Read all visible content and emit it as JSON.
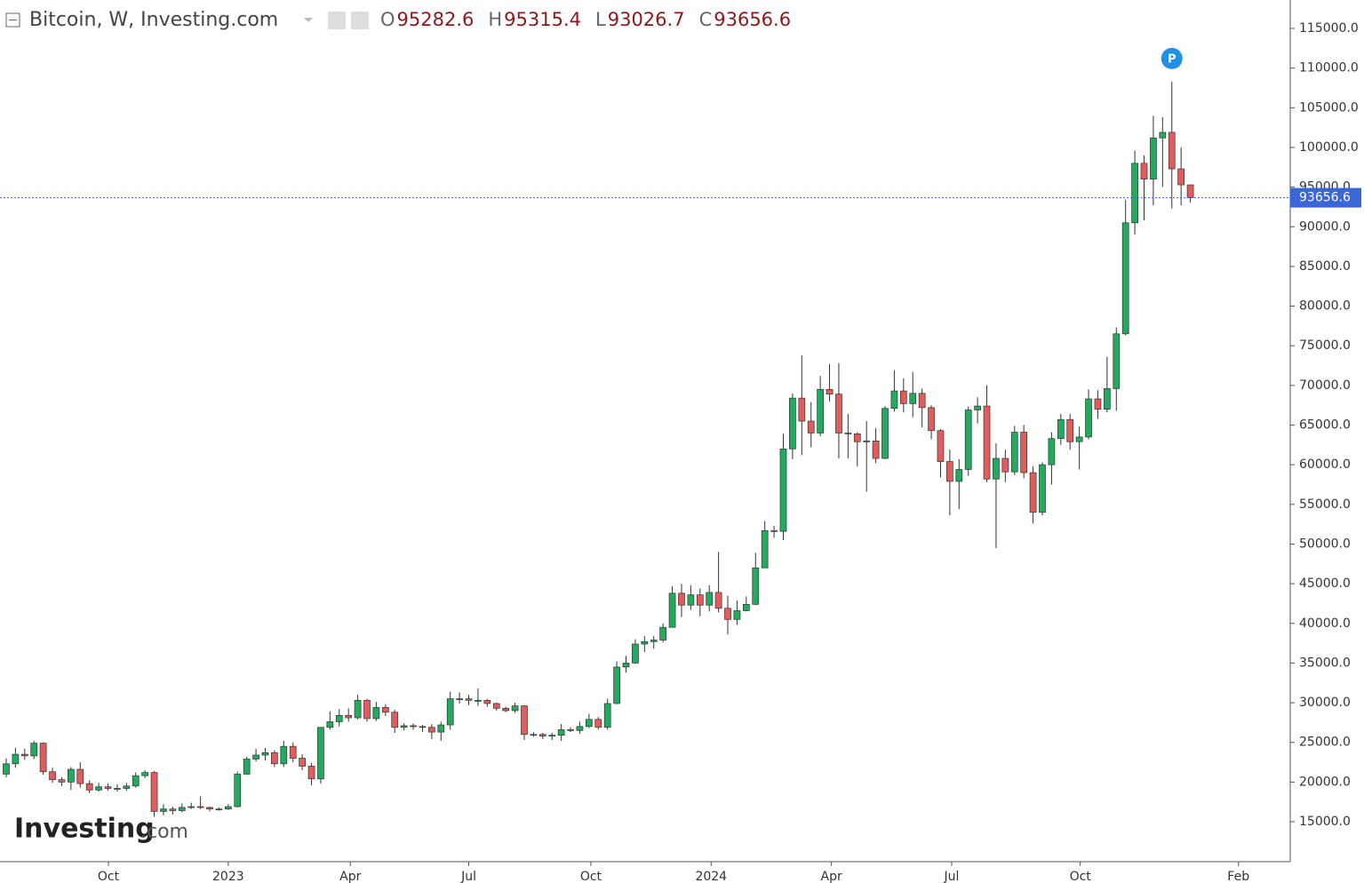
{
  "chart_data": {
    "type": "candlestick",
    "title": "Bitcoin, W, Investing.com",
    "ohlc_labels": [
      "O",
      "H",
      "L",
      "C"
    ],
    "up_color": "#22ab5e",
    "down_color": "#e45b5b",
    "last_line_color": "#3b66d6",
    "marker": {
      "label": "P",
      "index": 126
    },
    "watermark": [
      "Investing",
      ".com"
    ],
    "xlim": [
      -0.67,
      138.8
    ],
    "xticks": [
      {
        "value": 11.05,
        "label": "Oct"
      },
      {
        "value": 24.0,
        "label": "2023"
      },
      {
        "value": 37.2,
        "label": "Apr"
      },
      {
        "value": 50.0,
        "label": "Jul"
      },
      {
        "value": 63.2,
        "label": "Oct"
      },
      {
        "value": 76.2,
        "label": "2024"
      },
      {
        "value": 89.2,
        "label": "Apr"
      },
      {
        "value": 102.2,
        "label": "Jul"
      },
      {
        "value": 116.1,
        "label": "Oct"
      },
      {
        "value": 133.2,
        "label": "Feb"
      }
    ],
    "ylim": [
      9961,
      118584
    ],
    "yticks": [
      {
        "value": 15000,
        "label": "15000.0"
      },
      {
        "value": 20000,
        "label": "20000.0"
      },
      {
        "value": 25000,
        "label": "25000.0"
      },
      {
        "value": 30000,
        "label": "30000.0"
      },
      {
        "value": 35000,
        "label": "35000.0"
      },
      {
        "value": 40000,
        "label": "40000.0"
      },
      {
        "value": 45000,
        "label": "45000.0"
      },
      {
        "value": 50000,
        "label": "50000.0"
      },
      {
        "value": 55000,
        "label": "55000.0"
      },
      {
        "value": 60000,
        "label": "60000.0"
      },
      {
        "value": 65000,
        "label": "65000.0"
      },
      {
        "value": 70000,
        "label": "70000.0"
      },
      {
        "value": 75000,
        "label": "75000.0"
      },
      {
        "value": 80000,
        "label": "80000.0"
      },
      {
        "value": 85000,
        "label": "85000.0"
      },
      {
        "value": 90000,
        "label": "90000.0"
      },
      {
        "value": 95000,
        "label": "95000.0"
      },
      {
        "value": 100000,
        "label": "100000.0"
      },
      {
        "value": 105000,
        "label": "105000.0"
      },
      {
        "value": 110000,
        "label": "110000.0"
      },
      {
        "value": 115000,
        "label": "115000.0"
      }
    ],
    "open": [
      21000,
      22300,
      23500,
      23300,
      24900,
      21300,
      20300,
      20000,
      21600,
      19800,
      19000,
      19400,
      19200,
      19200,
      19500,
      20800,
      21200,
      16300,
      16600,
      16400,
      16800,
      16900,
      16800,
      16600,
      16600,
      16900,
      21000,
      22900,
      23400,
      23700,
      22300,
      24500,
      23000,
      22000,
      20400,
      26900,
      27600,
      28400,
      28100,
      30300,
      28000,
      29400,
      28800,
      26900,
      27100,
      27000,
      26900,
      26300,
      27200,
      30500,
      30500,
      30300,
      30300,
      29900,
      29300,
      29000,
      29600,
      26000,
      26000,
      25800,
      25900,
      26600,
      26500,
      27000,
      27900,
      26900,
      29900,
      34500,
      35000,
      37400,
      37700,
      37900,
      39500,
      43800,
      42300,
      43600,
      42300,
      43900,
      41900,
      40500,
      41600,
      42400,
      47000,
      51700,
      51600,
      62000,
      68400,
      65500,
      64000,
      69500,
      68900,
      64000,
      63900,
      62900,
      63000,
      60800,
      67100,
      69300,
      67700,
      69000,
      67200,
      64300,
      60400,
      57900,
      59400,
      66900,
      67400,
      58200,
      60800,
      59100,
      64100,
      59000,
      54000,
      60000,
      63300,
      65700,
      62900,
      63500,
      68300,
      67000,
      69600,
      76500,
      90500,
      98000,
      96000,
      101200,
      101900,
      97300,
      95282.6
    ],
    "high": [
      23000,
      24300,
      24200,
      25200,
      25000,
      21800,
      20600,
      21900,
      22500,
      20200,
      19900,
      19800,
      19700,
      19900,
      21200,
      21500,
      21400,
      17200,
      16900,
      17300,
      17400,
      18200,
      16900,
      16800,
      17200,
      21300,
      23200,
      24200,
      24300,
      24000,
      25200,
      25000,
      23500,
      22400,
      26900,
      28900,
      29200,
      29300,
      31000,
      30500,
      30100,
      29800,
      29100,
      27400,
      27400,
      27200,
      27300,
      27600,
      31400,
      31300,
      31000,
      31800,
      30500,
      30000,
      29500,
      30000,
      29700,
      26300,
      26200,
      26200,
      27300,
      26900,
      27600,
      28600,
      28200,
      30500,
      35200,
      35900,
      38000,
      38400,
      38400,
      40000,
      44700,
      45000,
      44800,
      44400,
      44800,
      49000,
      43500,
      42900,
      43400,
      48900,
      52900,
      52300,
      63900,
      69000,
      73800,
      67900,
      71200,
      72700,
      72800,
      66400,
      64100,
      65500,
      64600,
      67400,
      71900,
      70900,
      71700,
      69600,
      67500,
      64500,
      61900,
      60700,
      67300,
      68500,
      70000,
      62700,
      61900,
      64900,
      65000,
      59800,
      60300,
      64100,
      66400,
      66400,
      64800,
      69500,
      69400,
      73600,
      77300,
      93400,
      99600,
      99000,
      104000,
      103800,
      108300,
      100000,
      95315.4
    ],
    "low": [
      20600,
      21800,
      22800,
      22900,
      20900,
      19900,
      19500,
      19000,
      19300,
      18600,
      18800,
      18900,
      18800,
      18900,
      19300,
      20500,
      15600,
      15800,
      15900,
      16200,
      16600,
      16600,
      16300,
      16400,
      16500,
      16800,
      20900,
      22600,
      22700,
      21900,
      21900,
      22500,
      21500,
      19600,
      19800,
      26600,
      27000,
      27600,
      27900,
      27600,
      27700,
      28300,
      26200,
      26500,
      26600,
      26300,
      25400,
      25200,
      26600,
      29900,
      29700,
      29600,
      29500,
      29000,
      28800,
      28700,
      25300,
      25700,
      25400,
      25300,
      25200,
      26300,
      26100,
      26800,
      26600,
      26600,
      29800,
      33800,
      34900,
      36400,
      36800,
      37600,
      39500,
      40800,
      41700,
      40900,
      41500,
      41400,
      38600,
      39800,
      41500,
      42300,
      47000,
      50800,
      50500,
      60700,
      61200,
      62200,
      63600,
      68000,
      60800,
      60800,
      59800,
      56600,
      60200,
      60700,
      66700,
      66600,
      66000,
      64700,
      63200,
      58400,
      53600,
      54400,
      58600,
      65200,
      57800,
      49500,
      57800,
      58700,
      58300,
      52600,
      53600,
      57500,
      62500,
      61900,
      59400,
      63200,
      65800,
      66600,
      66800,
      76300,
      89000,
      90800,
      92700,
      95000,
      92300,
      92700,
      93026.7
    ],
    "close": [
      22300,
      23500,
      23300,
      24900,
      21300,
      20300,
      20000,
      21600,
      19800,
      19000,
      19400,
      19200,
      19200,
      19500,
      20800,
      21200,
      16300,
      16600,
      16400,
      16800,
      16900,
      16800,
      16600,
      16600,
      16900,
      21000,
      22900,
      23400,
      23700,
      22300,
      24500,
      23000,
      22000,
      20400,
      26900,
      27600,
      28400,
      28100,
      30300,
      28000,
      29400,
      28800,
      26900,
      27100,
      27000,
      26900,
      26300,
      27200,
      30500,
      30500,
      30300,
      30300,
      29900,
      29300,
      29000,
      29600,
      26000,
      26000,
      25800,
      25900,
      26600,
      26500,
      27000,
      27900,
      26900,
      29900,
      34500,
      35000,
      37400,
      37700,
      37900,
      39500,
      43800,
      42300,
      43600,
      42300,
      43900,
      41900,
      40500,
      41600,
      42400,
      47000,
      51700,
      51600,
      62000,
      68400,
      65500,
      64000,
      69500,
      68900,
      64000,
      63900,
      62900,
      63000,
      60800,
      67100,
      69300,
      67700,
      69000,
      67200,
      64300,
      60400,
      57900,
      59400,
      66900,
      67400,
      58200,
      60800,
      59100,
      64100,
      59000,
      54000,
      60000,
      63300,
      65700,
      62900,
      63500,
      68300,
      67000,
      69600,
      76500,
      90500,
      98000,
      96000,
      101200,
      101900,
      97300,
      95282.6,
      93656.6
    ]
  }
}
